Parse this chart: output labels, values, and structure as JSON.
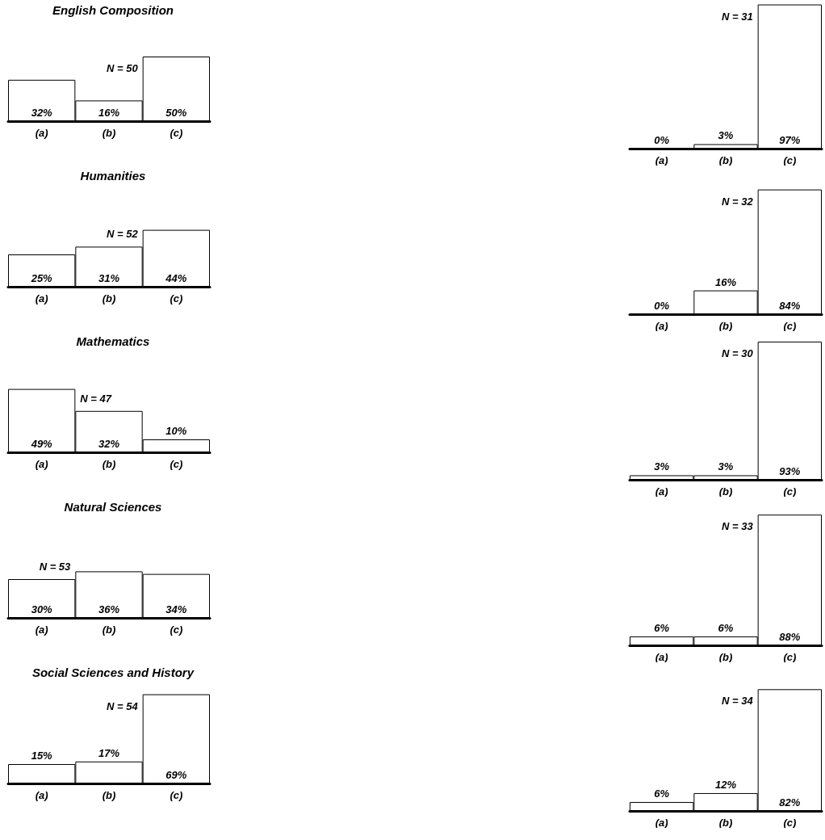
{
  "chart_data": [
    {
      "type": "bar",
      "title": "English Composition",
      "categories": [
        "(a)",
        "(b)",
        "(c)"
      ],
      "values": [
        32,
        16,
        50
      ],
      "value_labels": [
        "32%",
        "16%",
        "50%"
      ],
      "color": "#ffffff",
      "annotations": [
        "N = 50"
      ]
    },
    {
      "type": "bar",
      "categories": [
        "(a)",
        "(b)",
        "(c)"
      ],
      "values": [
        0,
        3,
        97
      ],
      "value_labels": [
        "0%",
        "3%",
        "97%"
      ],
      "color": "#ffffff",
      "annotations": [
        "N = 31"
      ]
    },
    {
      "type": "bar",
      "title": "Humanities",
      "categories": [
        "(a)",
        "(b)",
        "(c)"
      ],
      "values": [
        25,
        31,
        44
      ],
      "value_labels": [
        "25%",
        "31%",
        "44%"
      ],
      "color": "#ffffff",
      "annotations": [
        "N = 52"
      ]
    },
    {
      "type": "bar",
      "categories": [
        "(a)",
        "(b)",
        "(c)"
      ],
      "values": [
        0,
        16,
        84
      ],
      "value_labels": [
        "0%",
        "16%",
        "84%"
      ],
      "color": "#ffffff",
      "annotations": [
        "N = 32"
      ]
    },
    {
      "type": "bar",
      "title": "Mathematics",
      "categories": [
        "(a)",
        "(b)",
        "(c)"
      ],
      "values": [
        49,
        32,
        10
      ],
      "value_labels": [
        "49%",
        "32%",
        "10%"
      ],
      "color": "#ffffff",
      "annotations": [
        "N = 47"
      ]
    },
    {
      "type": "bar",
      "categories": [
        "(a)",
        "(b)",
        "(c)"
      ],
      "values": [
        3,
        3,
        93
      ],
      "value_labels": [
        "3%",
        "3%",
        "93%"
      ],
      "color": "#ffffff",
      "annotations": [
        "N = 30"
      ]
    },
    {
      "type": "bar",
      "title": "Natural Sciences",
      "categories": [
        "(a)",
        "(b)",
        "(c)"
      ],
      "values": [
        30,
        36,
        34
      ],
      "value_labels": [
        "30%",
        "36%",
        "34%"
      ],
      "color": "#ffffff",
      "annotations": [
        "N = 53"
      ]
    },
    {
      "type": "bar",
      "categories": [
        "(a)",
        "(b)",
        "(c)"
      ],
      "values": [
        6,
        6,
        88
      ],
      "value_labels": [
        "6%",
        "6%",
        "88%"
      ],
      "color": "#ffffff",
      "annotations": [
        "N = 33"
      ]
    },
    {
      "type": "bar",
      "title": "Social Sciences and History",
      "categories": [
        "(a)",
        "(b)",
        "(c)"
      ],
      "values": [
        15,
        17,
        69
      ],
      "value_labels": [
        "15%",
        "17%",
        "69%"
      ],
      "color": "#ffffff",
      "annotations": [
        "N = 54"
      ]
    },
    {
      "type": "bar",
      "categories": [
        "(a)",
        "(b)",
        "(c)"
      ],
      "values": [
        6,
        12,
        82
      ],
      "value_labels": [
        "6%",
        "12%",
        "82%"
      ],
      "color": "#ffffff",
      "annotations": [
        "N = 34"
      ]
    }
  ]
}
